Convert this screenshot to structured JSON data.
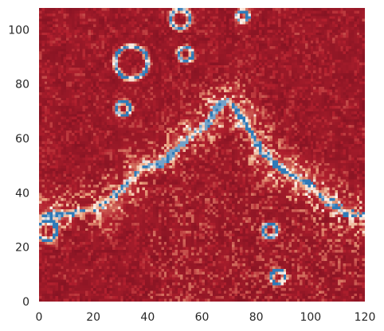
{
  "chart_data": {
    "type": "heatmap",
    "title": "",
    "xlabel": "",
    "ylabel": "",
    "xlim": [
      0,
      120
    ],
    "ylim": [
      0,
      108
    ],
    "x_ticks": [
      0,
      20,
      40,
      60,
      80,
      100,
      120
    ],
    "y_ticks": [
      0,
      20,
      40,
      60,
      80,
      100
    ],
    "grid": false,
    "colormap": "RdBu",
    "colors": {
      "low": "#780f1f",
      "mid_low": "#b2202e",
      "mid": "#e9a27e",
      "high": "#fdf3ec",
      "peak": "#2f7ab8",
      "background": "#ffffff",
      "tick_text": "#262626"
    },
    "grid_size": [
      120,
      108
    ],
    "features": {
      "ridge_polyline": [
        [
          0,
          31
        ],
        [
          20,
          34
        ],
        [
          30,
          41
        ],
        [
          38,
          49
        ],
        [
          45,
          51
        ],
        [
          52,
          57
        ],
        [
          56,
          61
        ],
        [
          62,
          65
        ],
        [
          66,
          72
        ],
        [
          70,
          74
        ],
        [
          76,
          66
        ],
        [
          82,
          55
        ],
        [
          90,
          48
        ],
        [
          98,
          44
        ],
        [
          105,
          38
        ],
        [
          112,
          33
        ],
        [
          120,
          31
        ]
      ],
      "rings": [
        [
          52,
          104,
          3.5
        ],
        [
          54,
          91,
          2.5
        ],
        [
          34,
          88,
          6
        ],
        [
          3,
          26,
          3.5
        ],
        [
          85,
          26,
          2.5
        ],
        [
          88,
          9,
          2.5
        ],
        [
          31,
          71,
          2.5
        ],
        [
          75,
          105,
          2
        ]
      ],
      "blue_ridge_segment": [
        40,
        50,
        70,
        74
      ]
    }
  }
}
